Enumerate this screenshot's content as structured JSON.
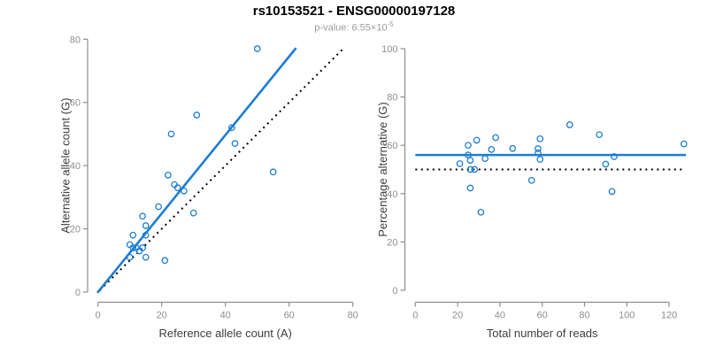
{
  "header": {
    "title": "rs10153521 - ENSG00000197128",
    "subtitle_prefix": "p-value: ",
    "subtitle_base": "6.55×10",
    "subtitle_exp": "-5"
  },
  "colors": {
    "accent_blue": "#1d7dd2",
    "dotted_line": "#000000",
    "axis_line": "#8e8e8e",
    "tick_text": "#8e8e8e",
    "axis_title_text": "#3d3d3d",
    "title_text": "#000000",
    "subtitle_text": "#9b9b9b"
  },
  "chart_data": [
    {
      "type": "scatter",
      "panel": "left",
      "xlabel": "Reference allele count (A)",
      "ylabel": "Alternative allele count (G)",
      "xlim": [
        0,
        80
      ],
      "ylim": [
        0,
        80
      ],
      "xticks": [
        0,
        20,
        40,
        60,
        80
      ],
      "yticks": [
        0,
        20,
        40,
        60,
        80
      ],
      "grid": false,
      "points": [
        [
          50,
          77
        ],
        [
          31,
          56
        ],
        [
          23,
          50
        ],
        [
          42,
          52
        ],
        [
          43,
          47
        ],
        [
          55,
          38
        ],
        [
          22,
          37
        ],
        [
          24,
          34
        ],
        [
          25,
          33
        ],
        [
          27,
          32
        ],
        [
          19,
          27
        ],
        [
          14,
          24
        ],
        [
          30,
          25
        ],
        [
          15,
          21
        ],
        [
          11,
          18
        ],
        [
          15,
          18
        ],
        [
          10,
          15
        ],
        [
          11,
          14
        ],
        [
          12,
          14
        ],
        [
          13,
          13
        ],
        [
          14,
          14
        ],
        [
          10,
          11
        ],
        [
          15,
          11
        ],
        [
          21,
          10
        ]
      ],
      "regression_line": {
        "x1": 0,
        "y1": 0,
        "x2": 62,
        "y2": 77
      },
      "identity_line": {
        "x1": 0.6,
        "y1": 0.6,
        "x2": 77,
        "y2": 77
      }
    },
    {
      "type": "scatter",
      "panel": "right",
      "xlabel": "Total number of reads",
      "ylabel": "Percentage alternative (G)",
      "xlim": [
        0,
        128
      ],
      "ylim": [
        0,
        100
      ],
      "xticks": [
        0,
        20,
        40,
        60,
        80,
        100,
        120
      ],
      "yticks": [
        0,
        20,
        40,
        60,
        80,
        100
      ],
      "grid": false,
      "points": [
        [
          127,
          60.6
        ],
        [
          87,
          64.4
        ],
        [
          73,
          68.5
        ],
        [
          94,
          55.3
        ],
        [
          90,
          52.2
        ],
        [
          93,
          40.9
        ],
        [
          59,
          62.7
        ],
        [
          58,
          58.6
        ],
        [
          58,
          56.9
        ],
        [
          59,
          54.2
        ],
        [
          46,
          58.7
        ],
        [
          38,
          63.2
        ],
        [
          55,
          45.5
        ],
        [
          36,
          58.3
        ],
        [
          29,
          62.1
        ],
        [
          33,
          54.5
        ],
        [
          25,
          60.0
        ],
        [
          25,
          56.0
        ],
        [
          26,
          53.8
        ],
        [
          26,
          50.0
        ],
        [
          28,
          50.0
        ],
        [
          21,
          52.4
        ],
        [
          26,
          42.3
        ],
        [
          31,
          32.3
        ]
      ],
      "mean_line": 56,
      "null_line": 50
    }
  ]
}
